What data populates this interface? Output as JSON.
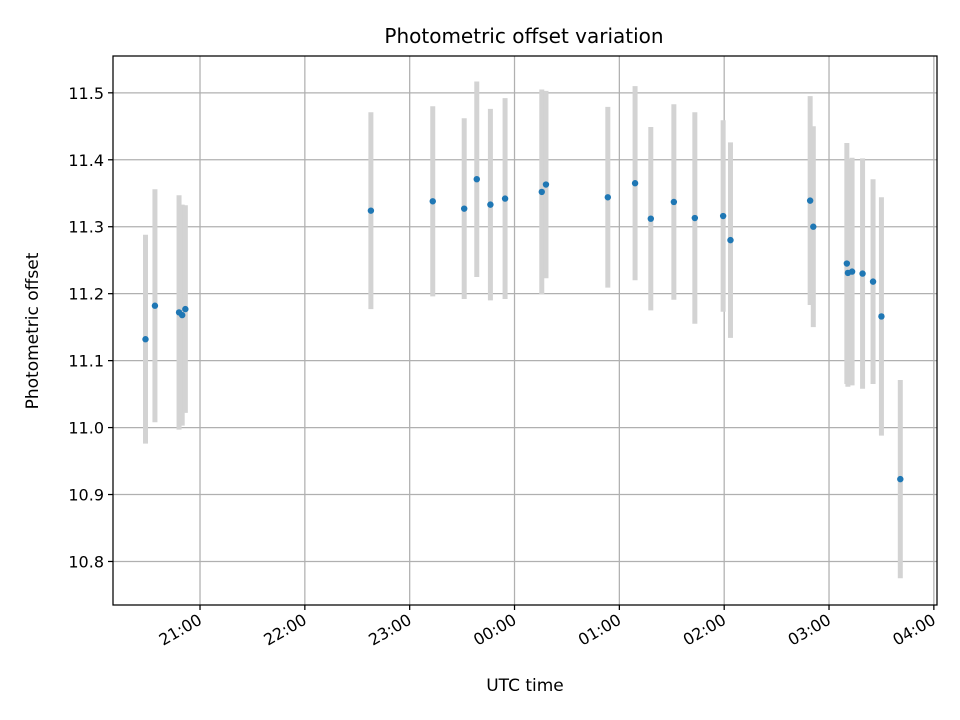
{
  "chart_data": {
    "type": "scatter",
    "title": "Photometric offset variation",
    "xlabel": "UTC time",
    "ylabel": "Photometric offset",
    "x_unit": "hours after 20:00 UTC (ticks wrap at 24:00)",
    "xlim": [
      0.17,
      8.03
    ],
    "ylim": [
      10.735,
      11.555
    ],
    "grid": true,
    "x_ticks": [
      {
        "value": 1,
        "label": "21:00"
      },
      {
        "value": 2,
        "label": "22:00"
      },
      {
        "value": 3,
        "label": "23:00"
      },
      {
        "value": 4,
        "label": "00:00"
      },
      {
        "value": 5,
        "label": "01:00"
      },
      {
        "value": 6,
        "label": "02:00"
      },
      {
        "value": 7,
        "label": "03:00"
      },
      {
        "value": 8,
        "label": "04:00"
      }
    ],
    "y_ticks": [
      {
        "value": 10.8,
        "label": "10.8"
      },
      {
        "value": 10.9,
        "label": "10.9"
      },
      {
        "value": 11.0,
        "label": "11.0"
      },
      {
        "value": 11.1,
        "label": "11.1"
      },
      {
        "value": 11.2,
        "label": "11.2"
      },
      {
        "value": 11.3,
        "label": "11.3"
      },
      {
        "value": 11.4,
        "label": "11.4"
      },
      {
        "value": 11.5,
        "label": "11.5"
      }
    ],
    "colors": {
      "point": "#1f77b4",
      "errorbar": "#d3d3d3",
      "grid": "#b0b0b0"
    },
    "series": [
      {
        "points": [
          {
            "x": 0.48,
            "y": 11.132,
            "err": 0.156
          },
          {
            "x": 0.57,
            "y": 11.182,
            "err": 0.174
          },
          {
            "x": 0.8,
            "y": 11.172,
            "err": 0.175
          },
          {
            "x": 0.83,
            "y": 11.168,
            "err": 0.165
          },
          {
            "x": 0.86,
            "y": 11.177,
            "err": 0.155
          },
          {
            "x": 2.63,
            "y": 11.324,
            "err": 0.147
          },
          {
            "x": 3.22,
            "y": 11.338,
            "err": 0.142
          },
          {
            "x": 3.52,
            "y": 11.327,
            "err": 0.135
          },
          {
            "x": 3.64,
            "y": 11.371,
            "err": 0.146
          },
          {
            "x": 3.77,
            "y": 11.333,
            "err": 0.143
          },
          {
            "x": 3.91,
            "y": 11.342,
            "err": 0.15
          },
          {
            "x": 4.26,
            "y": 11.352,
            "err": 0.153
          },
          {
            "x": 4.3,
            "y": 11.363,
            "err": 0.14
          },
          {
            "x": 4.89,
            "y": 11.344,
            "err": 0.135
          },
          {
            "x": 5.15,
            "y": 11.365,
            "err": 0.145
          },
          {
            "x": 5.3,
            "y": 11.312,
            "err": 0.137
          },
          {
            "x": 5.52,
            "y": 11.337,
            "err": 0.146
          },
          {
            "x": 5.72,
            "y": 11.313,
            "err": 0.158
          },
          {
            "x": 5.99,
            "y": 11.316,
            "err": 0.143
          },
          {
            "x": 6.06,
            "y": 11.28,
            "err": 0.146
          },
          {
            "x": 6.82,
            "y": 11.339,
            "err": 0.156
          },
          {
            "x": 6.85,
            "y": 11.3,
            "err": 0.15
          },
          {
            "x": 7.17,
            "y": 11.245,
            "err": 0.18
          },
          {
            "x": 7.18,
            "y": 11.231,
            "err": 0.17
          },
          {
            "x": 7.22,
            "y": 11.233,
            "err": 0.17
          },
          {
            "x": 7.32,
            "y": 11.23,
            "err": 0.172
          },
          {
            "x": 7.42,
            "y": 11.218,
            "err": 0.153
          },
          {
            "x": 7.5,
            "y": 11.166,
            "err": 0.178
          },
          {
            "x": 7.68,
            "y": 10.923,
            "err": 0.148
          }
        ]
      }
    ]
  }
}
